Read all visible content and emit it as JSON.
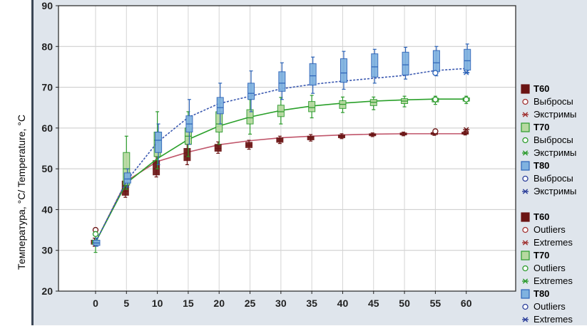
{
  "ylabel": "Температура, °C/ Temperature, °C",
  "legend": {
    "ru": [
      {
        "label": "T60",
        "sym": "box",
        "color": "#6b1414",
        "fill": "#6b1414"
      },
      {
        "label": "Выбросы",
        "sym": "circle",
        "color": "#a03030"
      },
      {
        "label": "Экстримы",
        "sym": "star",
        "color": "#a03030"
      },
      {
        "label": "T70",
        "sym": "box",
        "color": "#2a9a2a",
        "fill": "#b7d9a0"
      },
      {
        "label": "Выбросы",
        "sym": "circle",
        "color": "#2a9a2a"
      },
      {
        "label": "Экстримы",
        "sym": "star",
        "color": "#2a9a2a"
      },
      {
        "label": "T80",
        "sym": "box",
        "color": "#2c63b8",
        "fill": "#7fb2e0"
      },
      {
        "label": "Выбросы",
        "sym": "circle",
        "color": "#2c3f9a"
      },
      {
        "label": "Экстримы",
        "sym": "star",
        "color": "#2c3f9a"
      }
    ],
    "en": [
      {
        "label": "T60",
        "sym": "box",
        "color": "#6b1414",
        "fill": "#6b1414"
      },
      {
        "label": "Outliers",
        "sym": "circle",
        "color": "#a03030"
      },
      {
        "label": "Extremes",
        "sym": "star",
        "color": "#a03030"
      },
      {
        "label": "T70",
        "sym": "box",
        "color": "#2a9a2a",
        "fill": "#b7d9a0"
      },
      {
        "label": "Outliers",
        "sym": "circle",
        "color": "#2a9a2a"
      },
      {
        "label": "Extremes",
        "sym": "star",
        "color": "#2a9a2a"
      },
      {
        "label": "T80",
        "sym": "box",
        "color": "#2c63b8",
        "fill": "#7fb2e0"
      },
      {
        "label": "Outliers",
        "sym": "circle",
        "color": "#2c3f9a"
      },
      {
        "label": "Extremes",
        "sym": "star",
        "color": "#2c3f9a"
      }
    ]
  },
  "chart_data": {
    "type": "box",
    "x": [
      0,
      5,
      10,
      15,
      20,
      25,
      30,
      35,
      40,
      45,
      50,
      55,
      60
    ],
    "xticks": [
      "0",
      "5",
      "10",
      "15",
      "20",
      "25",
      "30",
      "35",
      "40",
      "45",
      "50",
      "55",
      "60"
    ],
    "ylim": [
      20,
      90
    ],
    "yticks": [
      "20",
      "30",
      "40",
      "50",
      "60",
      "70",
      "80",
      "90"
    ],
    "grid": true,
    "legend_position": "right",
    "series": [
      {
        "name": "T60",
        "color": "#6b1414",
        "fill": "#6b1414",
        "line": "#c0556a",
        "boxes": [
          [
            31.5,
            32,
            32.5,
            31,
            33
          ],
          [
            43.5,
            44.5,
            47,
            43,
            48
          ],
          [
            48.5,
            50,
            52,
            48,
            53
          ],
          [
            52,
            53,
            55,
            51,
            56
          ],
          [
            54.3,
            55,
            56,
            53.8,
            56.6
          ],
          [
            55.2,
            55.8,
            56.5,
            54.8,
            57
          ],
          [
            56.5,
            57,
            57.6,
            56.2,
            58
          ],
          [
            57.1,
            57.6,
            58,
            56.8,
            58.4
          ],
          [
            57.6,
            57.9,
            58.3,
            57.4,
            58.6
          ],
          [
            58.1,
            58.3,
            58.6,
            57.9,
            58.8
          ],
          [
            58.3,
            58.5,
            58.8,
            58.1,
            59
          ],
          [
            58.4,
            58.6,
            58.9,
            58.2,
            59.1
          ],
          [
            58.5,
            58.7,
            59,
            58.3,
            59.2
          ]
        ],
        "fit": [
          32,
          47,
          51.8,
          54.1,
          55.9,
          56.9,
          57.6,
          58,
          58.3,
          58.5,
          58.6,
          58.6,
          58.6
        ],
        "outliers": [
          [
            0,
            35
          ],
          [
            55,
            59.2
          ]
        ],
        "extremes": [
          [
            60,
            59.6
          ]
        ]
      },
      {
        "name": "T70",
        "color": "#2a9a2a",
        "fill": "#b7d9a0",
        "line": "#2aa02a",
        "boxes": [
          [
            31.5,
            32,
            32.5,
            29.5,
            34
          ],
          [
            46,
            50,
            54,
            45,
            58
          ],
          [
            53,
            57,
            59,
            50,
            64
          ],
          [
            56,
            58,
            60,
            53,
            64
          ],
          [
            59,
            61,
            64,
            56,
            67
          ],
          [
            61,
            62.5,
            64.5,
            58.5,
            67
          ],
          [
            62.8,
            64,
            65.6,
            61,
            67.5
          ],
          [
            64,
            65,
            66.5,
            62.5,
            68
          ],
          [
            64.8,
            65.8,
            66.7,
            63.8,
            67.6
          ],
          [
            65.5,
            66.3,
            67,
            64.5,
            67.6
          ],
          [
            66,
            66.6,
            67.2,
            65.2,
            67.8
          ],
          [
            66.4,
            66.8,
            67.3,
            65.8,
            67.8
          ],
          [
            66.6,
            67,
            67.4,
            66,
            67.8
          ]
        ],
        "fit": [
          32,
          46.5,
          52.5,
          57.2,
          60.5,
          62.7,
          64.3,
          65.4,
          66.1,
          66.6,
          66.9,
          67.1,
          67.1
        ],
        "outliers": [
          [
            0,
            34
          ],
          [
            55,
            67
          ],
          [
            60,
            67
          ]
        ],
        "extremes": []
      },
      {
        "name": "T80",
        "color": "#2c63b8",
        "fill": "#7fb2e0",
        "line": "#3a58b0",
        "boxes": [
          [
            31.2,
            31.8,
            32.5,
            31,
            33
          ],
          [
            46.5,
            47.5,
            49,
            45.5,
            50
          ],
          [
            54,
            57,
            59,
            51,
            61
          ],
          [
            59,
            61,
            63,
            56,
            67
          ],
          [
            63.5,
            65,
            67.5,
            61,
            71
          ],
          [
            67,
            68.5,
            71,
            64,
            74
          ],
          [
            69,
            71,
            73.8,
            67,
            76
          ],
          [
            70.5,
            72.8,
            75.8,
            68.5,
            77.4
          ],
          [
            71.2,
            73.5,
            77,
            69.5,
            78.8
          ],
          [
            72.5,
            75,
            78.2,
            71,
            79.3
          ],
          [
            73,
            75.5,
            78.6,
            72,
            79.8
          ],
          [
            73.8,
            76,
            79,
            72.8,
            80
          ],
          [
            74.2,
            76.5,
            79.3,
            73.5,
            80.6
          ]
        ],
        "fit": [
          32,
          47,
          56.5,
          62.6,
          66,
          67.8,
          69.6,
          70.7,
          71.5,
          72.2,
          72.9,
          74.1,
          74.6
        ],
        "outliers": [
          [
            55,
            73.5
          ]
        ],
        "extremes": [
          [
            60,
            73.6
          ]
        ]
      }
    ]
  }
}
